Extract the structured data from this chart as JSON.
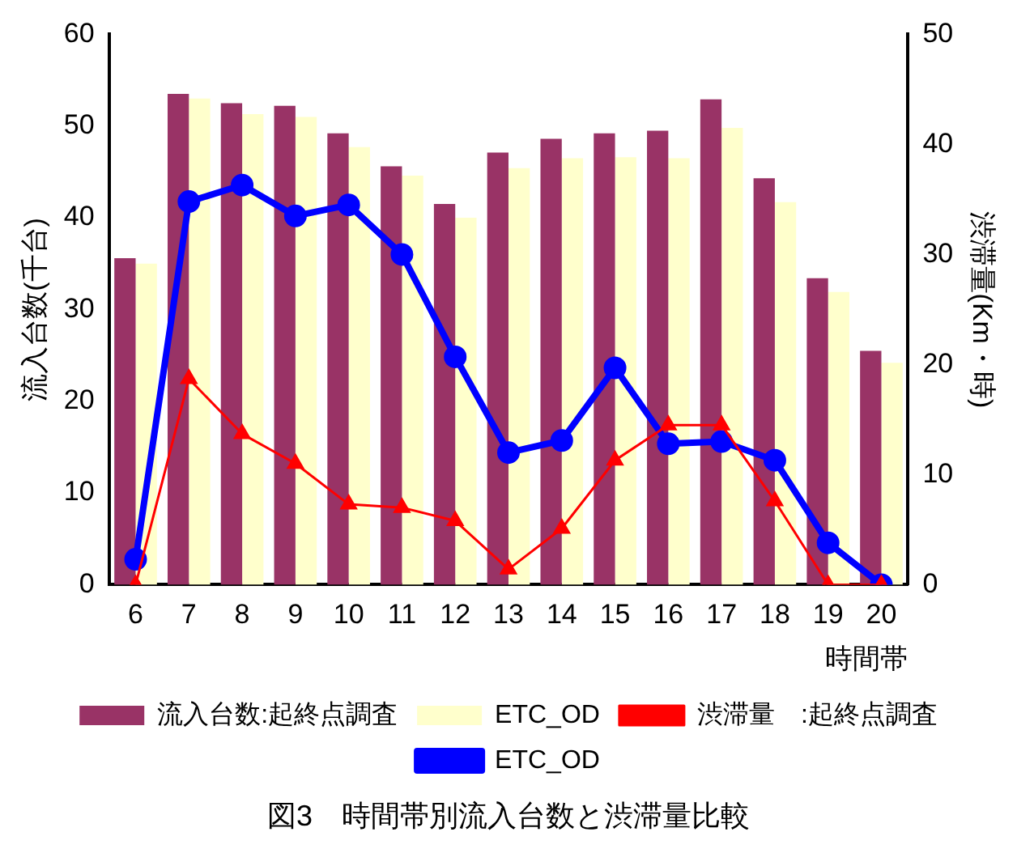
{
  "chart_data": {
    "type": "bar",
    "title": "図3　時間帯別流入台数と渋滞量比較",
    "xlabel": "時間帯",
    "ylabel": "流入台数(千台)",
    "y2label": "渋滞量(Km・時)",
    "categories": [
      "6",
      "7",
      "8",
      "9",
      "10",
      "11",
      "12",
      "13",
      "14",
      "15",
      "16",
      "17",
      "18",
      "19",
      "20"
    ],
    "series": [
      {
        "name": "流入台数:起終点調査",
        "color": "#993366",
        "values": [
          35.6,
          53.5,
          52.5,
          52.2,
          49.2,
          45.6,
          41.5,
          47.1,
          48.6,
          49.2,
          49.5,
          52.9,
          44.3,
          33.4,
          25.5
        ]
      },
      {
        "name": "ETC_OD",
        "color": "#ffffcc",
        "values": [
          35.0,
          53.0,
          51.3,
          51.0,
          47.7,
          44.6,
          40.0,
          45.4,
          46.5,
          46.6,
          46.5,
          49.8,
          41.7,
          31.9,
          24.2
        ]
      },
      {
        "name": "渋滞量　:起終点調査",
        "type": "line",
        "axis": "y2",
        "color": "#ff0000",
        "marker": "triangle",
        "values": [
          0,
          18.7,
          13.7,
          11.0,
          7.3,
          7.0,
          5.8,
          1.4,
          5.1,
          11.3,
          14.5,
          14.5,
          7.6,
          0,
          0
        ]
      },
      {
        "name": "ETC_OD",
        "type": "line",
        "axis": "y2",
        "color": "#0000ff",
        "marker": "circle",
        "values": [
          2.3,
          34.8,
          36.3,
          33.5,
          34.5,
          30.0,
          20.7,
          12.0,
          13.1,
          19.7,
          12.8,
          13.0,
          11.3,
          3.8,
          0
        ]
      }
    ],
    "ylim": [
      0,
      60
    ],
    "yticks": [
      0,
      10,
      20,
      30,
      40,
      50,
      60
    ],
    "y2lim": [
      0,
      50
    ],
    "y2ticks": [
      0,
      10,
      20,
      30,
      40,
      50
    ],
    "grid": false,
    "legend": "bottom"
  }
}
